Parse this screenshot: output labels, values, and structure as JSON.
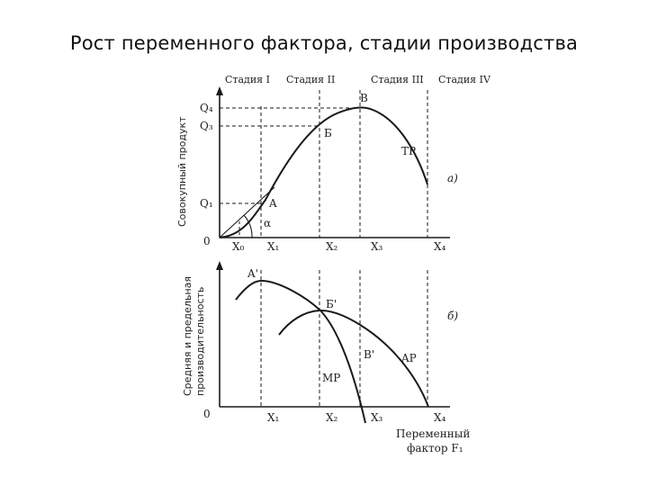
{
  "title": "Рост переменного фактора, стадии производства",
  "stages": [
    "Стадия I",
    "Стадия II",
    "Стадия III",
    "Стадия IV"
  ],
  "top_panel": {
    "y_label": "Совокупный продукт",
    "y_ticks": [
      "Q₄",
      "Q₃",
      "Q₁"
    ],
    "origin": "0",
    "x_ticks": [
      "X₀",
      "X₁",
      "X₂",
      "X₃",
      "X₄"
    ],
    "points": [
      "A",
      "Б",
      "B",
      "ТР"
    ],
    "angle": "α",
    "tag": "а)"
  },
  "bottom_panel": {
    "y_label_1": "Средняя и предельная",
    "y_label_2": "производительность",
    "origin": "0",
    "x_ticks": [
      "X₁",
      "X₂",
      "X₃",
      "X₄"
    ],
    "points": [
      "A'",
      "Б'",
      "B'",
      "MP",
      "AP"
    ],
    "tag": "б)",
    "x_label_1": "Переменный",
    "x_label_2": "фактор F₁"
  },
  "colors": {
    "ink": "#1a1a1a",
    "background": "#ffffff"
  }
}
